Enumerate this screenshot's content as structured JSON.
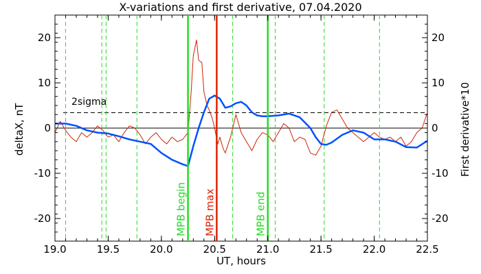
{
  "chart_data": {
    "type": "line",
    "title": "X-variations and first derivative, 07.04.2020",
    "xlabel": "UT, hours",
    "ylabel_left": "deltaX, nT",
    "ylabel_right": "First derivative*10",
    "xlim": [
      19.0,
      22.5
    ],
    "ylim": [
      -25,
      25
    ],
    "x_ticks": [
      19.0,
      19.5,
      20.0,
      20.5,
      21.0,
      21.5,
      22.0,
      22.5
    ],
    "y_ticks": [
      -20,
      -10,
      0,
      10,
      20
    ],
    "y_tick_labels_left": [
      "-20",
      "-10",
      "0",
      "10",
      "20"
    ],
    "y_tick_labels_right": [
      "-20",
      "-10",
      "0",
      "10",
      "20"
    ],
    "sigma_level": 3.4,
    "sigma_label": "2sigma",
    "colors": {
      "deltaX": "#0050ff",
      "derivative": "#cc2200",
      "ylabel_left": "#0050ff",
      "ylabel_right": "#ff2000",
      "vline_solid_green": "#22dd22",
      "vline_dashed_green": "#22dd22",
      "vline_red": "#dd2200"
    },
    "dashed_green_lines": [
      19.1,
      19.44,
      19.48,
      19.77,
      20.67,
      21.07,
      21.53,
      22.05
    ],
    "solid_lines": [
      {
        "x": 20.25,
        "label": "MPB begin",
        "color": "#22dd22"
      },
      {
        "x": 20.52,
        "label": "MPB max",
        "color": "#dd2200"
      },
      {
        "x": 21.0,
        "label": "MPB end",
        "color": "#22dd22"
      }
    ],
    "series": [
      {
        "key": "deltaX",
        "x": [
          19.0,
          19.1,
          19.2,
          19.3,
          19.4,
          19.5,
          19.6,
          19.7,
          19.8,
          19.9,
          20.0,
          20.1,
          20.2,
          20.25,
          20.3,
          20.35,
          20.4,
          20.45,
          20.5,
          20.55,
          20.6,
          20.65,
          20.7,
          20.75,
          20.8,
          20.85,
          20.9,
          20.95,
          21.0,
          21.1,
          21.2,
          21.3,
          21.4,
          21.45,
          21.5,
          21.55,
          21.6,
          21.7,
          21.8,
          21.9,
          22.0,
          22.1,
          22.2,
          22.3,
          22.4,
          22.5
        ],
        "values": [
          1.0,
          1.0,
          0.5,
          -0.5,
          -1.0,
          -1.2,
          -1.8,
          -2.5,
          -3.0,
          -3.5,
          -5.5,
          -7.0,
          -8.0,
          -8.4,
          -4.0,
          0.0,
          3.5,
          6.5,
          7.2,
          6.5,
          4.5,
          4.8,
          5.5,
          5.8,
          5.0,
          3.5,
          2.8,
          2.6,
          2.6,
          2.8,
          3.2,
          2.4,
          0.0,
          -2.0,
          -3.5,
          -3.7,
          -3.2,
          -1.5,
          -0.5,
          -1.0,
          -2.5,
          -2.5,
          -3.0,
          -4.2,
          -4.3,
          -2.8
        ]
      },
      {
        "key": "derivative",
        "x": [
          19.0,
          19.05,
          19.1,
          19.15,
          19.2,
          19.25,
          19.3,
          19.35,
          19.4,
          19.45,
          19.5,
          19.55,
          19.6,
          19.65,
          19.7,
          19.75,
          19.8,
          19.85,
          19.9,
          19.95,
          20.0,
          20.05,
          20.1,
          20.15,
          20.2,
          20.25,
          20.28,
          20.3,
          20.33,
          20.35,
          20.38,
          20.4,
          20.43,
          20.45,
          20.48,
          20.5,
          20.53,
          20.55,
          20.58,
          20.6,
          20.65,
          20.7,
          20.75,
          20.8,
          20.85,
          20.9,
          20.95,
          21.0,
          21.05,
          21.1,
          21.15,
          21.2,
          21.25,
          21.3,
          21.35,
          21.4,
          21.45,
          21.5,
          21.55,
          21.6,
          21.65,
          21.7,
          21.75,
          21.8,
          21.85,
          21.9,
          21.95,
          22.0,
          22.05,
          22.1,
          22.15,
          22.2,
          22.25,
          22.3,
          22.35,
          22.4,
          22.45,
          22.5
        ],
        "values": [
          -1.0,
          1.5,
          -0.5,
          -2.0,
          -3.0,
          -1.0,
          -2.0,
          -1.0,
          0.5,
          -0.5,
          -2.0,
          -1.5,
          -3.0,
          -1.0,
          0.5,
          0.0,
          -1.5,
          -3.5,
          -2.0,
          -1.0,
          -2.5,
          -3.5,
          -2.0,
          -3.0,
          -2.5,
          -1.0,
          8.0,
          16.0,
          19.5,
          15.0,
          14.5,
          8.0,
          5.0,
          4.0,
          2.0,
          0.0,
          -3.5,
          -2.0,
          -4.5,
          -5.5,
          -2.0,
          3.0,
          -1.0,
          -3.0,
          -5.0,
          -2.5,
          -1.0,
          -1.5,
          -3.0,
          -1.0,
          1.0,
          0.0,
          -3.0,
          -2.0,
          -2.5,
          -5.5,
          -6.0,
          -4.0,
          0.5,
          3.5,
          4.0,
          2.0,
          0.0,
          -1.0,
          -2.0,
          -3.0,
          -2.0,
          -1.0,
          -2.0,
          -2.5,
          -2.0,
          -3.0,
          -2.0,
          -4.0,
          -3.0,
          -1.0,
          0.0,
          3.5
        ]
      }
    ]
  }
}
